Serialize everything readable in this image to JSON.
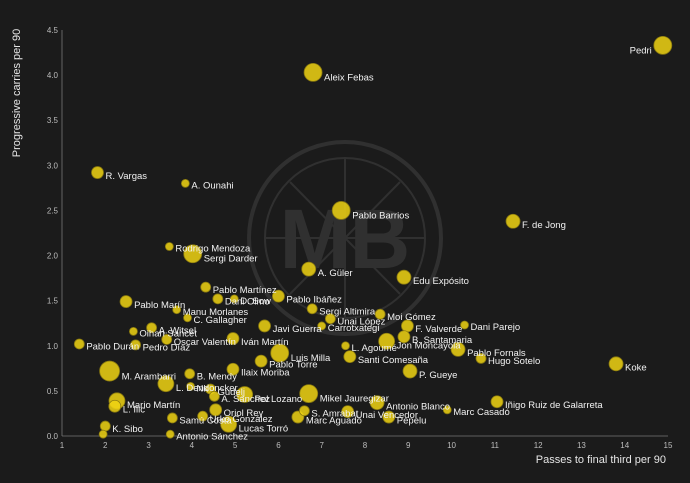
{
  "colors": {
    "background": "#1b1b1b",
    "point": "#f0d313",
    "point_stroke": "#8a7a10",
    "text": "#f2f2f2"
  },
  "chart_data": {
    "type": "scatter",
    "xlabel": "Passes to final third per 90",
    "ylabel": "Progressive carries per 90",
    "xlim": [
      1,
      15
    ],
    "ylim": [
      0,
      4.5
    ],
    "xticks": [
      1,
      2,
      3,
      4,
      5,
      6,
      7,
      8,
      9,
      10,
      11,
      12,
      13,
      14,
      15
    ],
    "yticks": [
      0.0,
      0.5,
      1.0,
      1.5,
      2.0,
      2.5,
      3.0,
      3.5,
      4.0,
      4.5
    ],
    "grid": false,
    "legend": "none",
    "watermark": "MB",
    "points": [
      {
        "label": "Pedri",
        "x": 14.88,
        "y": 4.33,
        "size": 9
      },
      {
        "label": "Aleix Febas",
        "x": 6.8,
        "y": 4.03,
        "size": 9
      },
      {
        "label": "R. Vargas",
        "x": 1.82,
        "y": 2.92,
        "size": 6
      },
      {
        "label": "A. Ounahi",
        "x": 3.85,
        "y": 2.8,
        "size": 4
      },
      {
        "label": "Pablo Barrios",
        "x": 7.45,
        "y": 2.5,
        "size": 9
      },
      {
        "label": "F. de Jong",
        "x": 11.42,
        "y": 2.38,
        "size": 7
      },
      {
        "label": "Rodrigo Mendoza",
        "x": 3.48,
        "y": 2.1,
        "size": 4
      },
      {
        "label": "Sergi Darder",
        "x": 4.02,
        "y": 2.02,
        "size": 9
      },
      {
        "label": "A. Güler",
        "x": 6.7,
        "y": 1.85,
        "size": 7
      },
      {
        "label": "Edu Expósito",
        "x": 8.9,
        "y": 1.76,
        "size": 7
      },
      {
        "label": "Pablo Martínez",
        "x": 4.32,
        "y": 1.65,
        "size": 5
      },
      {
        "label": "Dani Olmo",
        "x": 4.6,
        "y": 1.52,
        "size": 5
      },
      {
        "label": "D. Sow",
        "x": 4.98,
        "y": 1.52,
        "size": 4
      },
      {
        "label": "Pablo Ibáñez",
        "x": 6.0,
        "y": 1.55,
        "size": 6
      },
      {
        "label": "Pablo Marín",
        "x": 2.48,
        "y": 1.49,
        "size": 6
      },
      {
        "label": "Manu Morlanes",
        "x": 3.65,
        "y": 1.4,
        "size": 4
      },
      {
        "label": "Sergi Altimira",
        "x": 6.78,
        "y": 1.41,
        "size": 5
      },
      {
        "label": "C. Gallagher",
        "x": 3.9,
        "y": 1.31,
        "size": 4
      },
      {
        "label": "Unai López",
        "x": 7.2,
        "y": 1.3,
        "size": 5
      },
      {
        "label": "Moi Gómez",
        "x": 8.35,
        "y": 1.35,
        "size": 5
      },
      {
        "label": "Carrotxategi",
        "x": 7.0,
        "y": 1.22,
        "size": 4
      },
      {
        "label": "F. Valverde",
        "x": 8.98,
        "y": 1.22,
        "size": 6
      },
      {
        "label": "Dani Parejo",
        "x": 10.3,
        "y": 1.23,
        "size": 4
      },
      {
        "label": "Oihan Sancet",
        "x": 2.65,
        "y": 1.16,
        "size": 4
      },
      {
        "label": "A. Witsel",
        "x": 3.07,
        "y": 1.2,
        "size": 5
      },
      {
        "label": "Javi Guerra",
        "x": 5.68,
        "y": 1.22,
        "size": 6
      },
      {
        "label": "Oscar Valentín",
        "x": 3.42,
        "y": 1.07,
        "size": 5
      },
      {
        "label": "Iván Martín",
        "x": 4.95,
        "y": 1.08,
        "size": 6
      },
      {
        "label": "B. Santamaria",
        "x": 8.9,
        "y": 1.1,
        "size": 6
      },
      {
        "label": "Pablo Durán",
        "x": 1.4,
        "y": 1.02,
        "size": 5
      },
      {
        "label": "Pedro Díaz",
        "x": 2.7,
        "y": 1.01,
        "size": 5
      },
      {
        "label": "L. Agoumé",
        "x": 7.55,
        "y": 1.0,
        "size": 4
      },
      {
        "label": "Jon Moncayola",
        "x": 8.5,
        "y": 1.05,
        "size": 8
      },
      {
        "label": "Pablo Fornals",
        "x": 10.15,
        "y": 0.96,
        "size": 7
      },
      {
        "label": "Hugo Sotelo",
        "x": 10.68,
        "y": 0.86,
        "size": 5
      },
      {
        "label": "Koke",
        "x": 13.8,
        "y": 0.8,
        "size": 7
      },
      {
        "label": "Luis Milla",
        "x": 6.03,
        "y": 0.92,
        "size": 9
      },
      {
        "label": "Santi Comesaña",
        "x": 7.65,
        "y": 0.88,
        "size": 6
      },
      {
        "label": "Pablo Torre",
        "x": 5.6,
        "y": 0.83,
        "size": 6
      },
      {
        "label": "Ilaix Moriba",
        "x": 4.95,
        "y": 0.74,
        "size": 6
      },
      {
        "label": "P. Gueye",
        "x": 9.04,
        "y": 0.72,
        "size": 7
      },
      {
        "label": "M. Arambarri",
        "x": 2.1,
        "y": 0.72,
        "size": 10
      },
      {
        "label": "B. Mendy",
        "x": 3.95,
        "y": 0.69,
        "size": 5
      },
      {
        "label": "L. Dendoncker",
        "x": 3.4,
        "y": 0.58,
        "size": 8
      },
      {
        "label": "Nk",
        "x": 3.97,
        "y": 0.55,
        "size": 4
      },
      {
        "label": "Gudelj",
        "x": 4.43,
        "y": 0.52,
        "size": 5
      },
      {
        "label": "A. Sánchez",
        "x": 4.52,
        "y": 0.44,
        "size": 5
      },
      {
        "label": "Pol Lozano",
        "x": 5.22,
        "y": 0.46,
        "size": 8
      },
      {
        "label": "Mikel Jauregizar",
        "x": 6.7,
        "y": 0.47,
        "size": 9
      },
      {
        "label": "Antonio Blanco",
        "x": 8.28,
        "y": 0.37,
        "size": 7
      },
      {
        "label": "Iñigo Ruiz de Galarretа",
        "x": 11.05,
        "y": 0.38,
        "size": 6
      },
      {
        "label": "Mario Martín",
        "x": 2.27,
        "y": 0.39,
        "size": 8
      },
      {
        "label": "L. Ilic",
        "x": 2.22,
        "y": 0.33,
        "size": 6
      },
      {
        "label": "Marc Casadó",
        "x": 9.9,
        "y": 0.29,
        "size": 4
      },
      {
        "label": "Oriol Rey",
        "x": 4.55,
        "y": 0.29,
        "size": 6
      },
      {
        "label": "S. Amrabat",
        "x": 6.6,
        "y": 0.28,
        "size": 5
      },
      {
        "label": "Unai Vencedor",
        "x": 7.6,
        "y": 0.27,
        "size": 6
      },
      {
        "label": "Urko González",
        "x": 4.25,
        "y": 0.22,
        "size": 5
      },
      {
        "label": "Marc Aguado",
        "x": 6.45,
        "y": 0.21,
        "size": 6
      },
      {
        "label": "Pepelu",
        "x": 8.55,
        "y": 0.21,
        "size": 6
      },
      {
        "label": "Samú Costa",
        "x": 3.55,
        "y": 0.2,
        "size": 5
      },
      {
        "label": "K. Sibo",
        "x": 2.0,
        "y": 0.11,
        "size": 5
      },
      {
        "label": "Lucas Torró",
        "x": 4.85,
        "y": 0.13,
        "size": 8
      },
      {
        "label": "Antonio Sánchez",
        "x": 3.5,
        "y": 0.02,
        "size": 4
      },
      {
        "label": "",
        "x": 1.95,
        "y": 0.02,
        "size": 4
      }
    ]
  }
}
